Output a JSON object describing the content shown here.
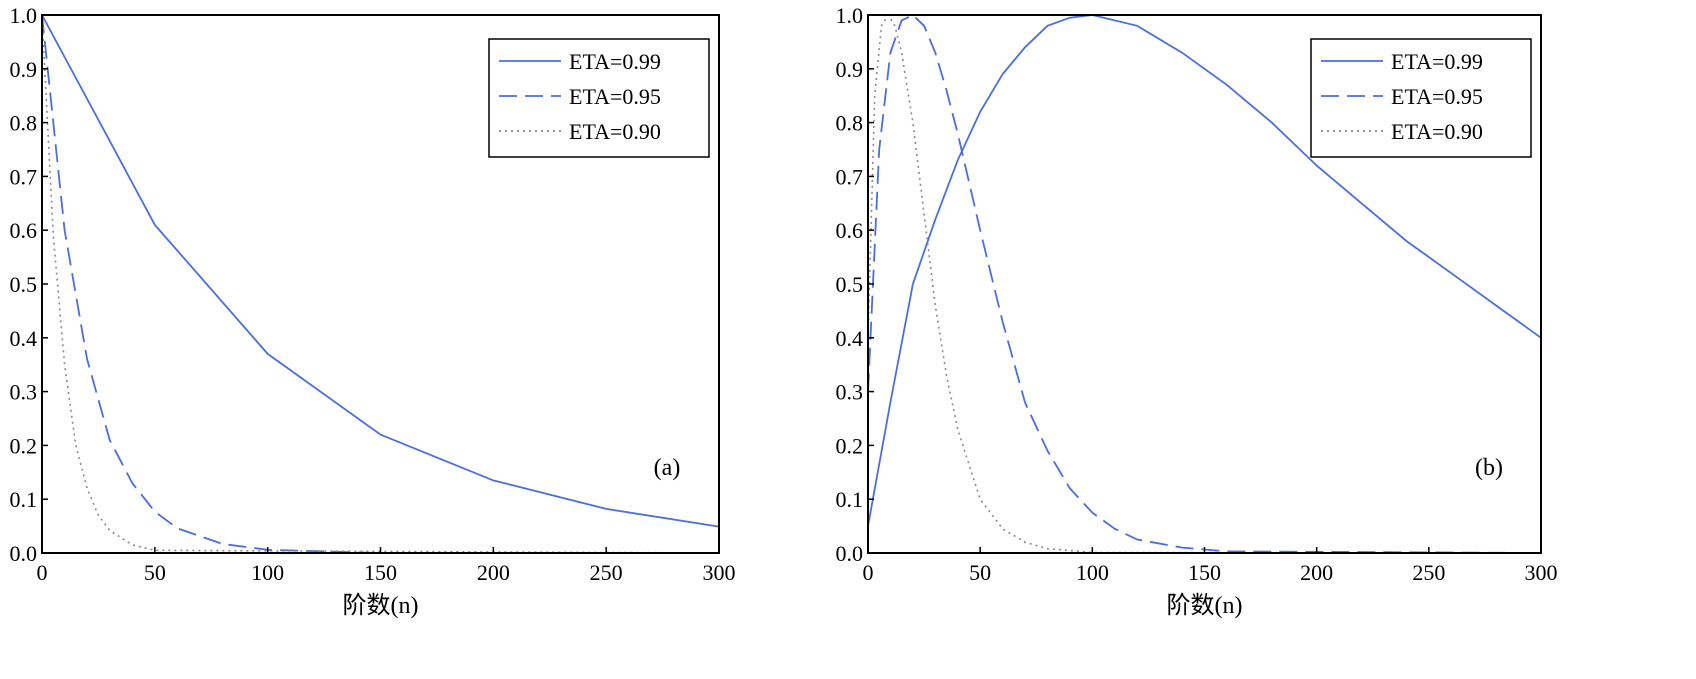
{
  "chart_data": [
    {
      "type": "line",
      "panel_label": "(a)",
      "xlabel": "阶数(n)",
      "ylabel": "",
      "xlim": [
        0,
        300
      ],
      "ylim": [
        0,
        1.0
      ],
      "xticks": [
        "0",
        "50",
        "100",
        "150",
        "200",
        "250",
        "300"
      ],
      "yticks": [
        "0.0",
        "0.1",
        "0.2",
        "0.3",
        "0.4",
        "0.5",
        "0.6",
        "0.7",
        "0.8",
        "0.9",
        "1.0"
      ],
      "legend_position": "top-right",
      "grid": false,
      "series": [
        {
          "name": "ETA=0.99",
          "color": "#4a6ee0",
          "dash": "solid",
          "x": [
            0,
            50,
            100,
            150,
            200,
            250,
            300
          ],
          "y": [
            1.0,
            0.61,
            0.37,
            0.22,
            0.135,
            0.082,
            0.049
          ]
        },
        {
          "name": "ETA=0.95",
          "color": "#4a6ee0",
          "dash": "dashed",
          "x": [
            0,
            10,
            20,
            30,
            40,
            50,
            60,
            80,
            100,
            150,
            300
          ],
          "y": [
            1.0,
            0.6,
            0.36,
            0.21,
            0.13,
            0.077,
            0.046,
            0.017,
            0.006,
            0.0,
            0.0
          ]
        },
        {
          "name": "ETA=0.90",
          "color": "#8a8a8a",
          "dash": "dotted",
          "x": [
            0,
            5,
            10,
            15,
            20,
            25,
            30,
            40,
            50,
            300
          ],
          "y": [
            1.0,
            0.59,
            0.35,
            0.2,
            0.12,
            0.07,
            0.042,
            0.015,
            0.005,
            0.0
          ]
        }
      ]
    },
    {
      "type": "line",
      "panel_label": "(b)",
      "xlabel": "阶数(n)",
      "ylabel": "",
      "xlim": [
        0,
        300
      ],
      "ylim": [
        0,
        1.0
      ],
      "xticks": [
        "0",
        "50",
        "100",
        "150",
        "200",
        "250",
        "300"
      ],
      "yticks": [
        "0.0",
        "0.1",
        "0.2",
        "0.3",
        "0.4",
        "0.5",
        "0.6",
        "0.7",
        "0.8",
        "0.9",
        "1.0"
      ],
      "legend_position": "top-right",
      "grid": false,
      "series": [
        {
          "name": "ETA=0.99",
          "color": "#4a6ee0",
          "dash": "solid",
          "x": [
            0,
            10,
            20,
            30,
            40,
            50,
            60,
            70,
            80,
            90,
            100,
            120,
            140,
            160,
            180,
            200,
            220,
            240,
            260,
            280,
            300
          ],
          "y": [
            0.05,
            0.28,
            0.5,
            0.62,
            0.73,
            0.82,
            0.89,
            0.94,
            0.98,
            0.995,
            1.0,
            0.98,
            0.93,
            0.87,
            0.8,
            0.72,
            0.65,
            0.58,
            0.52,
            0.46,
            0.4
          ]
        },
        {
          "name": "ETA=0.95",
          "color": "#4a6ee0",
          "dash": "dashed",
          "x": [
            0,
            5,
            10,
            15,
            20,
            25,
            30,
            35,
            40,
            50,
            60,
            70,
            80,
            90,
            100,
            110,
            120,
            140,
            160,
            300
          ],
          "y": [
            0.3,
            0.75,
            0.93,
            0.99,
            1.0,
            0.98,
            0.93,
            0.86,
            0.78,
            0.6,
            0.43,
            0.28,
            0.19,
            0.12,
            0.075,
            0.045,
            0.025,
            0.01,
            0.003,
            0.0
          ]
        },
        {
          "name": "ETA=0.90",
          "color": "#8a8a8a",
          "dash": "dotted",
          "x": [
            0,
            3,
            6,
            9,
            12,
            15,
            20,
            25,
            30,
            35,
            40,
            50,
            60,
            70,
            80,
            100,
            300
          ],
          "y": [
            0.4,
            0.85,
            0.98,
            1.0,
            0.98,
            0.93,
            0.8,
            0.63,
            0.46,
            0.33,
            0.23,
            0.1,
            0.045,
            0.02,
            0.008,
            0.001,
            0.0
          ]
        }
      ]
    }
  ]
}
